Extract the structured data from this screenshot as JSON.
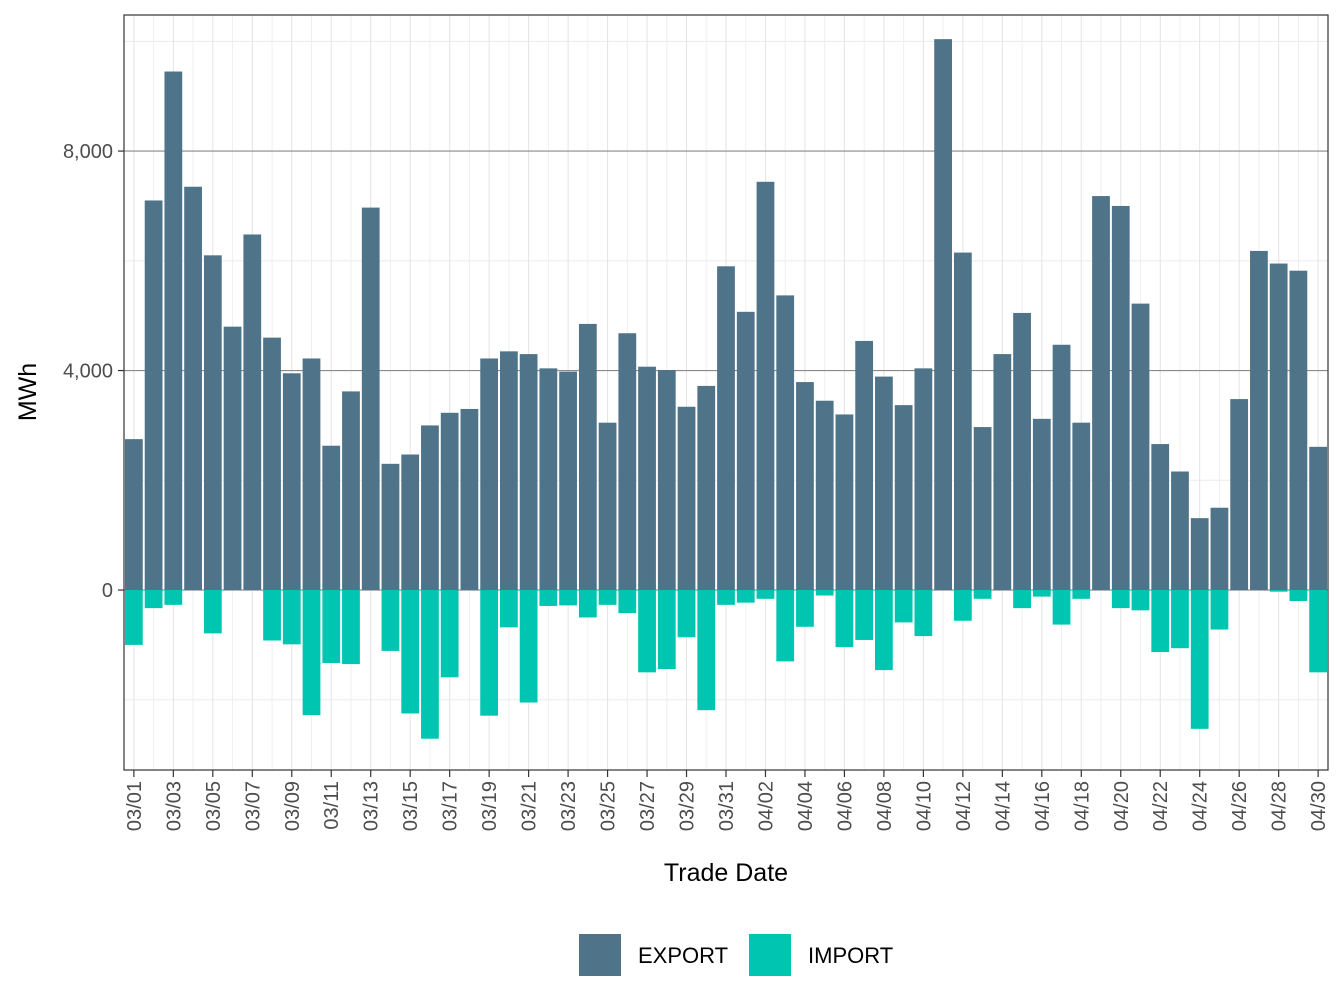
{
  "chart_data": {
    "type": "bar",
    "stacked": true,
    "xlabel": "Trade Date",
    "ylabel": "MWh",
    "ylim": [
      -3280,
      10480
    ],
    "y_ticks": [
      0,
      4000,
      8000
    ],
    "y_tick_labels": [
      "0",
      "4,000",
      "8,000"
    ],
    "y_minor_ticks": [
      -2000,
      2000,
      6000,
      10000
    ],
    "grid": true,
    "legend_position": "bottom",
    "categories": [
      "03/01",
      "03/02",
      "03/03",
      "03/04",
      "03/05",
      "03/06",
      "03/07",
      "03/08",
      "03/09",
      "03/10",
      "03/11",
      "03/12",
      "03/13",
      "03/14",
      "03/15",
      "03/16",
      "03/17",
      "03/18",
      "03/19",
      "03/20",
      "03/21",
      "03/22",
      "03/23",
      "03/24",
      "03/25",
      "03/26",
      "03/27",
      "03/28",
      "03/29",
      "03/30",
      "03/31",
      "04/01",
      "04/02",
      "04/03",
      "04/04",
      "04/05",
      "04/06",
      "04/07",
      "04/08",
      "04/09",
      "04/10",
      "04/11",
      "04/12",
      "04/13",
      "04/14",
      "04/15",
      "04/16",
      "04/17",
      "04/18",
      "04/19",
      "04/20",
      "04/21",
      "04/22",
      "04/23",
      "04/24",
      "04/25",
      "04/26",
      "04/27",
      "04/28",
      "04/29",
      "04/30"
    ],
    "x_tick_labels": [
      "03/01",
      "03/03",
      "03/05",
      "03/07",
      "03/09",
      "03/11",
      "03/13",
      "03/15",
      "03/17",
      "03/19",
      "03/21",
      "03/23",
      "03/25",
      "03/27",
      "03/29",
      "03/31",
      "04/02",
      "04/04",
      "04/06",
      "04/08",
      "04/10",
      "04/12",
      "04/14",
      "04/16",
      "04/18",
      "04/20",
      "04/22",
      "04/24",
      "04/26",
      "04/28",
      "04/30"
    ],
    "series": [
      {
        "name": "EXPORT",
        "color": "#4f7388",
        "values": [
          2750,
          7100,
          9450,
          7350,
          6100,
          4800,
          6480,
          4600,
          3950,
          4220,
          2630,
          3620,
          6970,
          2300,
          2470,
          3000,
          3230,
          3300,
          4220,
          4350,
          4300,
          4040,
          3980,
          4850,
          3050,
          4680,
          4070,
          4010,
          3340,
          3720,
          5900,
          5070,
          7440,
          5370,
          3790,
          3450,
          3200,
          4540,
          3890,
          3370,
          4040,
          10040,
          6150,
          2970,
          4300,
          5050,
          3120,
          4470,
          3050,
          7180,
          7000,
          5220,
          2660,
          2160,
          1310,
          1500,
          3480,
          6180,
          5950,
          5820,
          2610
        ]
      },
      {
        "name": "IMPORT",
        "color": "#00c5b1",
        "values": [
          -1000,
          -330,
          -270,
          0,
          -790,
          0,
          0,
          -920,
          -990,
          -2280,
          -1330,
          -1350,
          0,
          -1110,
          -2250,
          -2710,
          -1590,
          0,
          -2290,
          -680,
          -2050,
          -290,
          -280,
          -500,
          -270,
          -420,
          -1500,
          -1440,
          -860,
          -2190,
          -270,
          -230,
          -160,
          -1300,
          -670,
          -100,
          -1040,
          -910,
          -1460,
          -590,
          -840,
          0,
          -560,
          -160,
          0,
          -330,
          -120,
          -630,
          -160,
          0,
          -330,
          -370,
          -1130,
          -1060,
          -2530,
          -720,
          0,
          0,
          -30,
          -200,
          -1500
        ]
      }
    ]
  }
}
